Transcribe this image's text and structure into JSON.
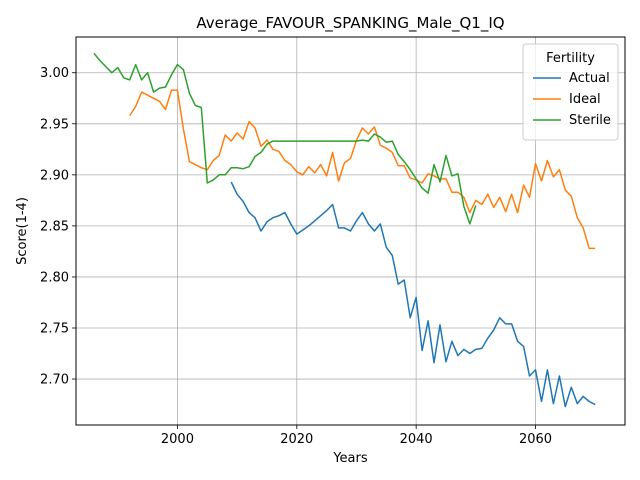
{
  "chart_data": {
    "type": "line",
    "title": "Average_FAVOUR_SPANKING_Male_Q1_IQ",
    "xlabel": "Years",
    "ylabel": "Score(1-4)",
    "xlim": [
      1983,
      2075
    ],
    "ylim": [
      2.655,
      3.035
    ],
    "grid": true,
    "x_ticks": [
      2000,
      2020,
      2040,
      2060
    ],
    "x_tick_labels": [
      "2000",
      "2020",
      "2040",
      "2060"
    ],
    "y_ticks": [
      2.7,
      2.75,
      2.8,
      2.85,
      2.9,
      2.95,
      3.0
    ],
    "y_tick_labels": [
      "2.70",
      "2.75",
      "2.80",
      "2.85",
      "2.90",
      "2.95",
      "3.00"
    ],
    "legend": {
      "title": "Fertility",
      "position": "top-right"
    },
    "series": [
      {
        "name": "Actual",
        "color": "#1f77b4",
        "x": [
          2009,
          2010,
          2011,
          2012,
          2013,
          2014,
          2015,
          2016,
          2017,
          2018,
          2019,
          2020,
          2021,
          2022,
          2023,
          2024,
          2025,
          2026,
          2027,
          2028,
          2029,
          2030,
          2031,
          2032,
          2033,
          2034,
          2035,
          2036,
          2037,
          2038,
          2039,
          2040,
          2041,
          2042,
          2043,
          2044,
          2045,
          2046,
          2047,
          2048,
          2049,
          2050,
          2051,
          2052,
          2053,
          2054,
          2055,
          2056,
          2057,
          2058,
          2059,
          2060,
          2061,
          2062,
          2063,
          2064,
          2065,
          2066,
          2067,
          2068,
          2069,
          2070
        ],
        "values": [
          2.893,
          2.881,
          2.874,
          2.863,
          2.858,
          2.845,
          2.854,
          2.858,
          2.86,
          2.863,
          2.852,
          2.842,
          2.846,
          2.85,
          2.855,
          2.86,
          2.865,
          2.871,
          2.848,
          2.848,
          2.845,
          2.855,
          2.863,
          2.852,
          2.845,
          2.852,
          2.829,
          2.821,
          2.793,
          2.797,
          2.76,
          2.78,
          2.728,
          2.757,
          2.716,
          2.753,
          2.717,
          2.737,
          2.723,
          2.729,
          2.725,
          2.729,
          2.73,
          2.74,
          2.748,
          2.76,
          2.754,
          2.754,
          2.737,
          2.732,
          2.703,
          2.709,
          2.678,
          2.709,
          2.676,
          2.703,
          2.673,
          2.692,
          2.676,
          2.683,
          2.678,
          2.675
        ]
      },
      {
        "name": "Ideal",
        "color": "#ff7f0e",
        "x": [
          1992,
          1993,
          1994,
          1995,
          1996,
          1997,
          1998,
          1999,
          2000,
          2001,
          2002,
          2003,
          2004,
          2005,
          2006,
          2007,
          2008,
          2009,
          2010,
          2011,
          2012,
          2013,
          2014,
          2015,
          2016,
          2017,
          2018,
          2019,
          2020,
          2021,
          2022,
          2023,
          2024,
          2025,
          2026,
          2027,
          2028,
          2029,
          2030,
          2031,
          2032,
          2033,
          2034,
          2035,
          2036,
          2037,
          2038,
          2039,
          2040,
          2041,
          2042,
          2043,
          2044,
          2045,
          2046,
          2047,
          2048,
          2049,
          2050,
          2051,
          2052,
          2053,
          2054,
          2055,
          2056,
          2057,
          2058,
          2059,
          2060,
          2061,
          2062,
          2063,
          2064,
          2065,
          2066,
          2067,
          2068,
          2069,
          2070
        ],
        "values": [
          2.958,
          2.967,
          2.981,
          2.978,
          2.975,
          2.972,
          2.964,
          2.983,
          2.983,
          2.945,
          2.913,
          2.91,
          2.907,
          2.905,
          2.914,
          2.919,
          2.939,
          2.933,
          2.941,
          2.935,
          2.952,
          2.946,
          2.928,
          2.934,
          2.925,
          2.923,
          2.914,
          2.91,
          2.903,
          2.9,
          2.908,
          2.902,
          2.91,
          2.899,
          2.922,
          2.894,
          2.912,
          2.916,
          2.934,
          2.946,
          2.94,
          2.947,
          2.929,
          2.926,
          2.922,
          2.909,
          2.909,
          2.897,
          2.895,
          2.892,
          2.901,
          2.899,
          2.896,
          2.896,
          2.883,
          2.883,
          2.878,
          2.863,
          2.875,
          2.871,
          2.881,
          2.868,
          2.878,
          2.864,
          2.881,
          2.863,
          2.89,
          2.878,
          2.911,
          2.894,
          2.914,
          2.898,
          2.905,
          2.885,
          2.879,
          2.858,
          2.848,
          2.828,
          2.828
        ]
      },
      {
        "name": "Sterile",
        "color": "#2ca02c",
        "x": [
          1986,
          1987,
          1988,
          1989,
          1990,
          1991,
          1992,
          1993,
          1994,
          1995,
          1996,
          1997,
          1998,
          1999,
          2000,
          2001,
          2002,
          2003,
          2004,
          2005,
          2006,
          2007,
          2008,
          2009,
          2010,
          2011,
          2012,
          2013,
          2014,
          2015,
          2016,
          2017,
          2018,
          2019,
          2020,
          2021,
          2022,
          2023,
          2024,
          2025,
          2026,
          2027,
          2028,
          2029,
          2030,
          2031,
          2032,
          2033,
          2034,
          2035,
          2036,
          2037,
          2038,
          2039,
          2040,
          2041,
          2042,
          2043,
          2044,
          2045,
          2046,
          2047,
          2048,
          2049,
          2050
        ],
        "values": [
          3.019,
          3.012,
          3.006,
          3.0,
          3.005,
          2.995,
          2.993,
          3.008,
          2.993,
          3.0,
          2.981,
          2.985,
          2.986,
          2.998,
          3.008,
          3.003,
          2.98,
          2.968,
          2.966,
          2.892,
          2.895,
          2.9,
          2.9,
          2.907,
          2.907,
          2.906,
          2.908,
          2.918,
          2.922,
          2.93,
          2.933,
          2.933,
          2.933,
          2.933,
          2.933,
          2.933,
          2.933,
          2.933,
          2.933,
          2.933,
          2.933,
          2.933,
          2.933,
          2.933,
          2.933,
          2.934,
          2.933,
          2.94,
          2.937,
          2.932,
          2.933,
          2.92,
          2.913,
          2.905,
          2.896,
          2.887,
          2.882,
          2.91,
          2.893,
          2.919,
          2.899,
          2.901,
          2.869,
          2.852,
          2.87
        ]
      }
    ]
  }
}
